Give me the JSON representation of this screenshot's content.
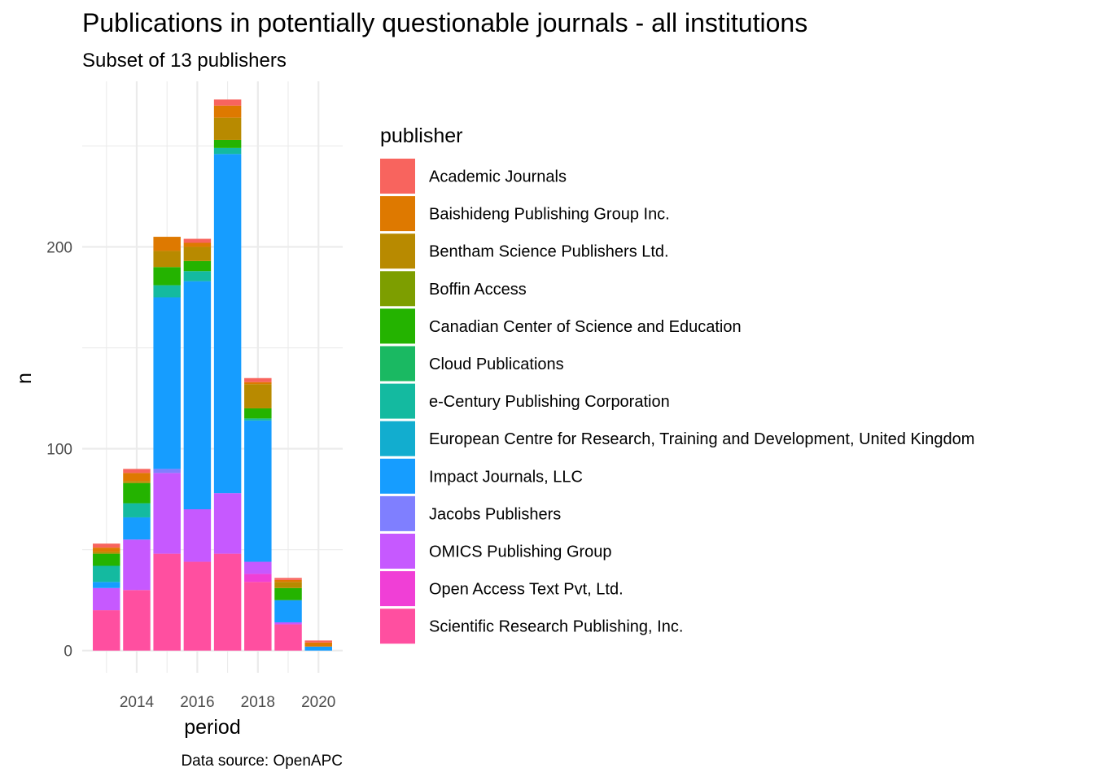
{
  "chart_data": {
    "type": "bar",
    "stacked": true,
    "title": "Publications in potentially questionable journals - all institutions",
    "subtitle": "Subset of 13 publishers",
    "xlabel": "period",
    "ylabel": "n",
    "caption": "Data source: OpenAPC",
    "categories": [
      2013,
      2014,
      2015,
      2016,
      2017,
      2018,
      2019,
      2020
    ],
    "x_ticks": [
      2014,
      2016,
      2018,
      2020
    ],
    "y_ticks": [
      0,
      100,
      200
    ],
    "xlim": [
      2012.2,
      2020.8
    ],
    "ylim": [
      -11,
      282
    ],
    "grid": true,
    "legend_title": "publisher",
    "legend_position": "right",
    "series": [
      {
        "name": "Scientific Research Publishing, Inc.",
        "color": "#FF4FA0",
        "values": [
          20,
          30,
          48,
          44,
          48,
          34,
          13,
          0
        ]
      },
      {
        "name": "Open Access Text Pvt, Ltd.",
        "color": "#F03FD6",
        "values": [
          0,
          0,
          0,
          0,
          0,
          4,
          0,
          0
        ]
      },
      {
        "name": "OMICS Publishing Group",
        "color": "#C659FF",
        "values": [
          11,
          25,
          40,
          26,
          30,
          6,
          1,
          0
        ]
      },
      {
        "name": "Jacobs Publishers",
        "color": "#7F7FFF",
        "values": [
          0,
          0,
          2,
          0,
          0,
          0,
          0,
          0
        ]
      },
      {
        "name": "Impact Journals, LLC",
        "color": "#169DFF",
        "values": [
          3,
          11,
          85,
          113,
          168,
          70,
          11,
          2
        ]
      },
      {
        "name": "European Centre for Research, Training and Development, United Kingdom",
        "color": "#12ADCF",
        "values": [
          0,
          0,
          0,
          0,
          0,
          0,
          0,
          0
        ]
      },
      {
        "name": "e-Century Publishing Corporation",
        "color": "#14BAA0",
        "values": [
          8,
          7,
          6,
          5,
          3,
          1,
          0,
          0
        ]
      },
      {
        "name": "Cloud Publications",
        "color": "#1AB962",
        "values": [
          0,
          0,
          0,
          0,
          0,
          0,
          0,
          0
        ]
      },
      {
        "name": "Canadian Center of Science and Education",
        "color": "#24B300",
        "values": [
          6,
          10,
          9,
          5,
          4,
          5,
          6,
          0
        ]
      },
      {
        "name": "Boffin Access",
        "color": "#7D9E00",
        "values": [
          0,
          0,
          0,
          0,
          0,
          0,
          0,
          0
        ]
      },
      {
        "name": "Bentham Science Publishers Ltd.",
        "color": "#B88A00",
        "values": [
          1,
          1,
          8,
          7,
          11,
          12,
          3,
          0
        ]
      },
      {
        "name": "Baishideng Publishing Group Inc.",
        "color": "#DE7900",
        "values": [
          2,
          4,
          7,
          2,
          6,
          1,
          1,
          2
        ]
      },
      {
        "name": "Academic Journals",
        "color": "#F8645E",
        "values": [
          2,
          2,
          0,
          2,
          3,
          2,
          1,
          1
        ]
      }
    ],
    "legend_order": [
      "Academic Journals",
      "Baishideng Publishing Group Inc.",
      "Bentham Science Publishers Ltd.",
      "Boffin Access",
      "Canadian Center of Science and Education",
      "Cloud Publications",
      "e-Century Publishing Corporation",
      "European Centre for Research, Training and Development, United Kingdom",
      "Impact Journals, LLC",
      "Jacobs Publishers",
      "OMICS Publishing Group",
      "Open Access Text Pvt, Ltd.",
      "Scientific Research Publishing, Inc."
    ]
  }
}
